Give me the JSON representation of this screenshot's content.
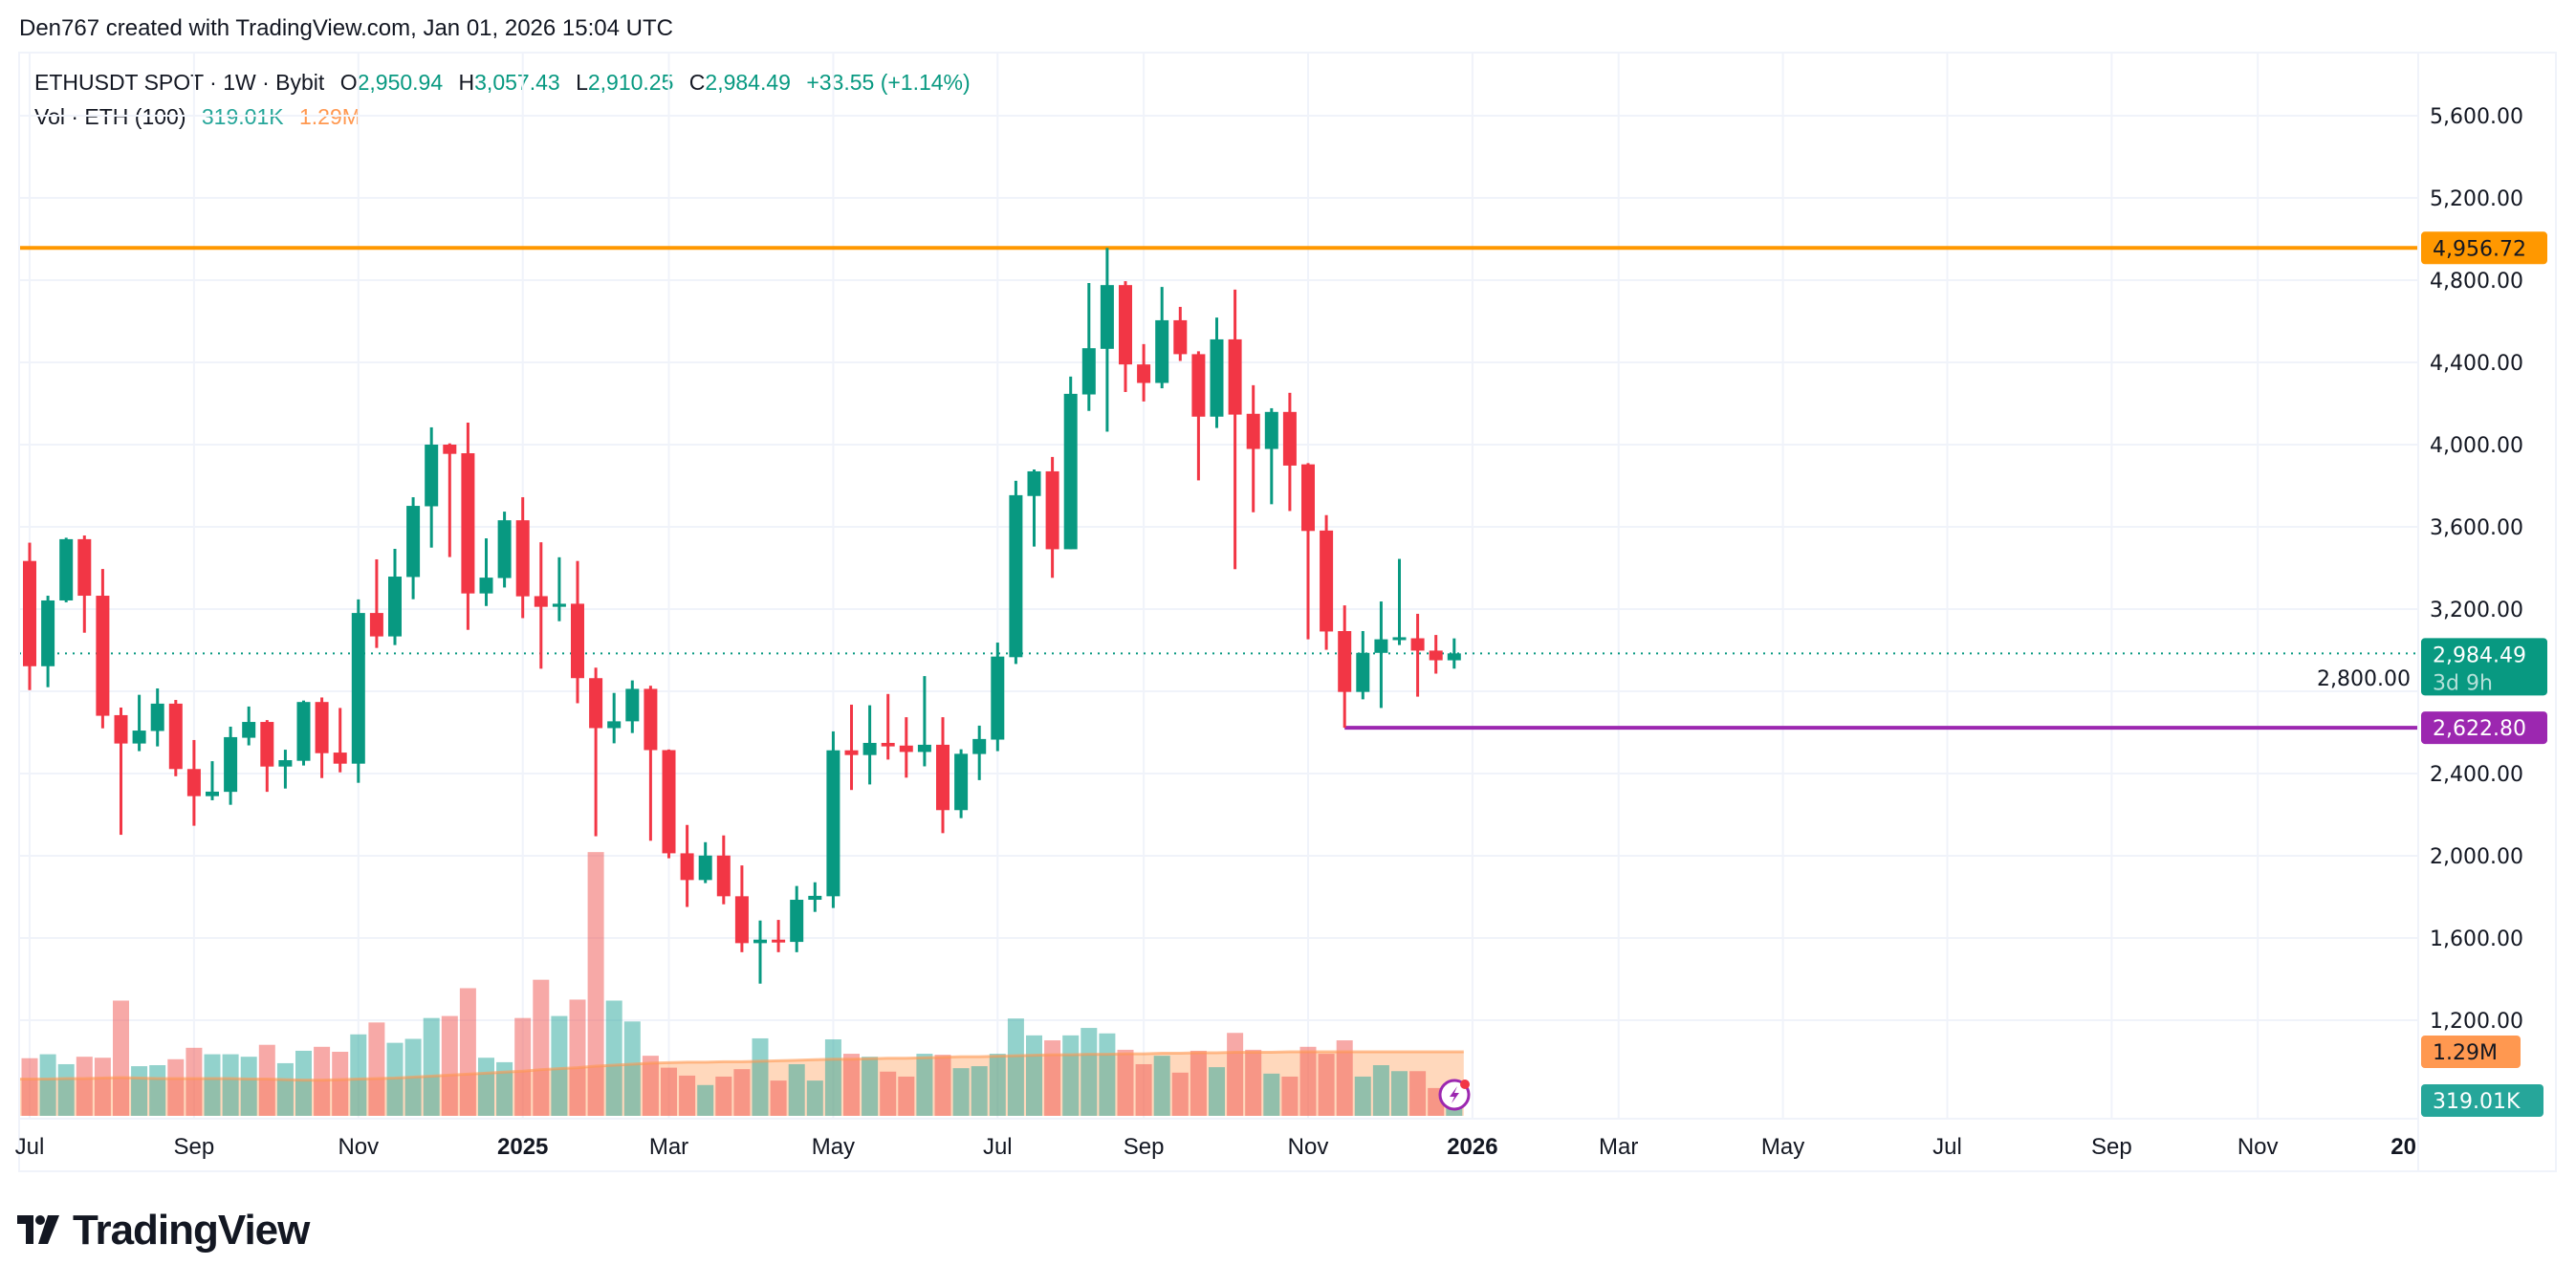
{
  "credit": "Den767 created with TradingView.com, Jan 01, 2026 15:04 UTC",
  "legend": {
    "symbol": "ETHUSDT SPOT · 1W · Bybit",
    "o_label": "O",
    "o_value": "2,950.94",
    "h_label": "H",
    "h_value": "3,057.43",
    "l_label": "L",
    "l_value": "2,910.25",
    "c_label": "C",
    "c_value": "2,984.49",
    "change": "+33.55 (+1.14%)",
    "vol_title": "Vol · ETH (100)",
    "vol_value": "319.01K",
    "vol_sma": "1.29M"
  },
  "logo_text": "TradingView",
  "colors": {
    "up": "#089981",
    "down": "#f23645",
    "vol_up": "#26a69a",
    "vol_down": "#ef5350",
    "vol_sma": "#ff9850",
    "resistance": "#ff9800",
    "support": "#9c27b0",
    "grid": "#f0f3fa",
    "text": "#131722"
  },
  "icons": {
    "alert": "lightning-bolt-icon"
  },
  "chart_data": {
    "type": "candlestick",
    "symbol": "ETHUSDT",
    "interval": "1W",
    "grid": true,
    "ylim": [
      1000,
      5800
    ],
    "y_ticks": [
      "5,600.00",
      "5,200.00",
      "4,800.00",
      "4,400.00",
      "4,000.00",
      "3,600.00",
      "3,200.00",
      "2,800.00",
      "2,400.00",
      "2,000.00",
      "1,600.00",
      "1,200.00"
    ],
    "y_tick_values": [
      5600,
      5200,
      4800,
      4400,
      4000,
      3600,
      3200,
      2800,
      2400,
      2000,
      1600,
      1200
    ],
    "x_ticks": [
      {
        "label": "Jul",
        "date": "2024-07-01",
        "bold": false
      },
      {
        "label": "Sep",
        "date": "2024-09-02",
        "bold": false
      },
      {
        "label": "Nov",
        "date": "2024-11-04",
        "bold": false
      },
      {
        "label": "2025",
        "date": "2025-01-06",
        "bold": true
      },
      {
        "label": "Mar",
        "date": "2025-03-03",
        "bold": false
      },
      {
        "label": "May",
        "date": "2025-05-05",
        "bold": false
      },
      {
        "label": "Jul",
        "date": "2025-07-07",
        "bold": false
      },
      {
        "label": "Sep",
        "date": "2025-09-01",
        "bold": false
      },
      {
        "label": "Nov",
        "date": "2025-11-03",
        "bold": false
      },
      {
        "label": "2026",
        "date": "2026-01-05",
        "bold": true
      },
      {
        "label": "Mar",
        "date": "2026-03-02",
        "bold": false
      },
      {
        "label": "May",
        "date": "2026-05-04",
        "bold": false
      },
      {
        "label": "Jul",
        "date": "2026-07-06",
        "bold": false
      },
      {
        "label": "Sep",
        "date": "2026-09-07",
        "bold": false
      },
      {
        "label": "Nov",
        "date": "2026-11-02",
        "bold": false
      },
      {
        "label": "20",
        "date": "2027-01-04",
        "bold": true
      }
    ],
    "columns": [
      "date",
      "open",
      "high",
      "low",
      "close",
      "volume_m"
    ],
    "candles": [
      [
        "2024-07-01",
        3434,
        3523,
        2806,
        2922,
        1.16
      ],
      [
        "2024-07-08",
        2922,
        3265,
        2820,
        3242,
        1.24
      ],
      [
        "2024-07-15",
        3242,
        3547,
        3233,
        3540,
        1.04
      ],
      [
        "2024-07-22",
        3540,
        3558,
        3085,
        3265,
        1.19
      ],
      [
        "2024-07-29",
        3265,
        3395,
        2620,
        2681,
        1.17
      ],
      [
        "2024-08-05",
        2684,
        2721,
        2102,
        2546,
        2.32
      ],
      [
        "2024-08-12",
        2546,
        2783,
        2509,
        2609,
        1.0
      ],
      [
        "2024-08-19",
        2607,
        2814,
        2532,
        2740,
        1.02
      ],
      [
        "2024-08-26",
        2740,
        2758,
        2387,
        2422,
        1.14
      ],
      [
        "2024-09-02",
        2422,
        2563,
        2146,
        2290,
        1.37
      ],
      [
        "2024-09-09",
        2290,
        2460,
        2270,
        2312,
        1.24
      ],
      [
        "2024-09-16",
        2311,
        2628,
        2248,
        2577,
        1.24
      ],
      [
        "2024-09-23",
        2574,
        2726,
        2537,
        2651,
        1.19
      ],
      [
        "2024-09-30",
        2651,
        2660,
        2311,
        2434,
        1.43
      ],
      [
        "2024-10-07",
        2434,
        2516,
        2327,
        2465,
        1.06
      ],
      [
        "2024-10-14",
        2462,
        2755,
        2439,
        2748,
        1.31
      ],
      [
        "2024-10-21",
        2748,
        2770,
        2378,
        2499,
        1.39
      ],
      [
        "2024-10-28",
        2502,
        2719,
        2406,
        2448,
        1.29
      ],
      [
        "2024-11-04",
        2448,
        3247,
        2355,
        3181,
        1.64
      ],
      [
        "2024-11-11",
        3181,
        3442,
        3011,
        3067,
        1.88
      ],
      [
        "2024-11-18",
        3067,
        3493,
        3025,
        3358,
        1.47
      ],
      [
        "2024-11-25",
        3356,
        3744,
        3248,
        3702,
        1.55
      ],
      [
        "2024-12-02",
        3700,
        4084,
        3499,
        4000,
        1.97
      ],
      [
        "2024-12-09",
        4000,
        4006,
        3453,
        3955,
        2.01
      ],
      [
        "2024-12-16",
        3958,
        4107,
        3099,
        3276,
        2.57
      ],
      [
        "2024-12-23",
        3276,
        3544,
        3215,
        3353,
        1.17
      ],
      [
        "2024-12-30",
        3351,
        3674,
        3305,
        3632,
        1.08
      ],
      [
        "2025-01-06",
        3632,
        3744,
        3156,
        3262,
        1.97
      ],
      [
        "2025-01-13",
        3263,
        3525,
        2910,
        3211,
        2.74
      ],
      [
        "2025-01-20",
        3211,
        3452,
        3141,
        3226,
        2.01
      ],
      [
        "2025-01-27",
        3226,
        3434,
        2742,
        2864,
        2.34
      ],
      [
        "2025-02-03",
        2864,
        2915,
        2095,
        2621,
        5.31
      ],
      [
        "2025-02-10",
        2621,
        2792,
        2547,
        2654,
        2.32
      ],
      [
        "2025-02-17",
        2654,
        2853,
        2597,
        2812,
        1.9
      ],
      [
        "2025-02-24",
        2812,
        2827,
        2073,
        2514,
        1.21
      ],
      [
        "2025-03-03",
        2514,
        2517,
        1988,
        2012,
        0.97
      ],
      [
        "2025-03-10",
        2012,
        2150,
        1751,
        1882,
        0.81
      ],
      [
        "2025-03-17",
        1882,
        2066,
        1867,
        2001,
        0.62
      ],
      [
        "2025-03-24",
        2001,
        2099,
        1764,
        1803,
        0.79
      ],
      [
        "2025-03-31",
        1803,
        1953,
        1531,
        1575,
        0.94
      ],
      [
        "2025-04-07",
        1575,
        1685,
        1378,
        1592,
        1.56
      ],
      [
        "2025-04-14",
        1592,
        1688,
        1531,
        1581,
        0.71
      ],
      [
        "2025-04-21",
        1581,
        1853,
        1531,
        1786,
        1.04
      ],
      [
        "2025-04-28",
        1786,
        1871,
        1727,
        1805,
        0.71
      ],
      [
        "2025-05-05",
        1803,
        2605,
        1746,
        2513,
        1.54
      ],
      [
        "2025-05-12",
        2513,
        2735,
        2320,
        2490,
        1.25
      ],
      [
        "2025-05-19",
        2490,
        2732,
        2347,
        2549,
        1.19
      ],
      [
        "2025-05-26",
        2549,
        2787,
        2468,
        2532,
        0.89
      ],
      [
        "2025-06-02",
        2536,
        2674,
        2380,
        2505,
        0.79
      ],
      [
        "2025-06-09",
        2505,
        2874,
        2435,
        2540,
        1.25
      ],
      [
        "2025-06-16",
        2540,
        2674,
        2110,
        2222,
        1.23
      ],
      [
        "2025-06-23",
        2222,
        2518,
        2183,
        2496,
        0.96
      ],
      [
        "2025-06-30",
        2495,
        2633,
        2368,
        2568,
        1.0
      ],
      [
        "2025-07-07",
        2565,
        3037,
        2509,
        2969,
        1.25
      ],
      [
        "2025-07-14",
        2966,
        3824,
        2933,
        3754,
        1.96
      ],
      [
        "2025-07-21",
        3750,
        3879,
        3504,
        3870,
        1.62
      ],
      [
        "2025-07-28",
        3870,
        3940,
        3352,
        3491,
        1.52
      ],
      [
        "2025-08-04",
        3491,
        4331,
        3491,
        4247,
        1.62
      ],
      [
        "2025-08-11",
        4244,
        4786,
        4164,
        4469,
        1.77
      ],
      [
        "2025-08-18",
        4466,
        4956.72,
        4063,
        4776,
        1.66
      ],
      [
        "2025-08-25",
        4776,
        4795,
        4256,
        4390,
        1.33
      ],
      [
        "2025-09-01",
        4390,
        4489,
        4210,
        4300,
        1.04
      ],
      [
        "2025-09-08",
        4300,
        4767,
        4274,
        4605,
        1.21
      ],
      [
        "2025-09-15",
        4605,
        4670,
        4407,
        4440,
        0.87
      ],
      [
        "2025-09-22",
        4440,
        4454,
        3826,
        4136,
        1.31
      ],
      [
        "2025-09-29",
        4136,
        4618,
        4081,
        4512,
        0.98
      ],
      [
        "2025-10-06",
        4512,
        4754,
        3394,
        4146,
        1.67
      ],
      [
        "2025-10-13",
        4150,
        4289,
        3671,
        3979,
        1.33
      ],
      [
        "2025-10-20",
        3979,
        4177,
        3710,
        4159,
        0.85
      ],
      [
        "2025-10-27",
        4159,
        4252,
        3677,
        3898,
        0.79
      ],
      [
        "2025-11-03",
        3904,
        3910,
        3053,
        3580,
        1.39
      ],
      [
        "2025-11-10",
        3582,
        3657,
        3002,
        3091,
        1.25
      ],
      [
        "2025-11-17",
        3093,
        3218,
        2622.8,
        2797,
        1.52
      ],
      [
        "2025-11-24",
        2797,
        3093,
        2761,
        2987,
        0.79
      ],
      [
        "2025-12-01",
        2987,
        3237,
        2719,
        3053,
        1.02
      ],
      [
        "2025-12-08",
        3057,
        3444,
        3025,
        3063,
        0.9
      ],
      [
        "2025-12-15",
        3058,
        3177,
        2774,
        2998,
        0.9
      ],
      [
        "2025-12-22",
        2998,
        3074,
        2886,
        2951,
        0.56
      ],
      [
        "2025-12-29",
        2950.94,
        3057.43,
        2910.25,
        2984.49,
        0.319
      ]
    ],
    "volume_sma_m": [
      0.74,
      0.74,
      0.75,
      0.75,
      0.76,
      0.77,
      0.76,
      0.75,
      0.75,
      0.75,
      0.75,
      0.75,
      0.74,
      0.74,
      0.73,
      0.72,
      0.72,
      0.73,
      0.74,
      0.75,
      0.76,
      0.78,
      0.8,
      0.82,
      0.84,
      0.86,
      0.88,
      0.9,
      0.93,
      0.95,
      0.97,
      1.0,
      1.02,
      1.04,
      1.06,
      1.07,
      1.08,
      1.08,
      1.09,
      1.09,
      1.1,
      1.11,
      1.12,
      1.13,
      1.14,
      1.14,
      1.15,
      1.16,
      1.16,
      1.17,
      1.18,
      1.19,
      1.19,
      1.2,
      1.21,
      1.22,
      1.23,
      1.23,
      1.24,
      1.24,
      1.25,
      1.25,
      1.26,
      1.26,
      1.27,
      1.27,
      1.28,
      1.28,
      1.28,
      1.29,
      1.29,
      1.29,
      1.29,
      1.29,
      1.29,
      1.29,
      1.29,
      1.29,
      1.29
    ],
    "horizontal_lines": [
      {
        "value": 4956.72,
        "label": "4,956.72",
        "color": "#ff9800",
        "from_date": "2024-07-01"
      },
      {
        "value": 2622.8,
        "label": "2,622.80",
        "color": "#9c27b0",
        "from_date": "2025-11-17"
      }
    ],
    "last_price": {
      "value": 2984.49,
      "label": "2,984.49",
      "countdown": "3d 9h"
    },
    "volume_labels": {
      "sma": "1.29M",
      "last": "319.01K"
    }
  }
}
